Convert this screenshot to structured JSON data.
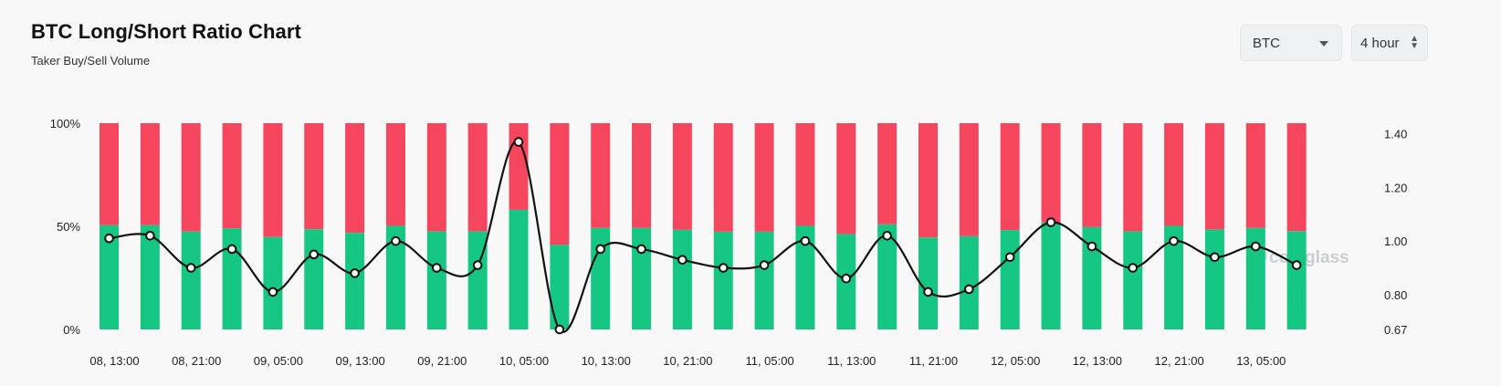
{
  "header": {
    "title": "BTC Long/Short Ratio Chart",
    "subtitle": "Taker Buy/Sell Volume"
  },
  "controls": {
    "symbol": "BTC",
    "interval": "4 hour"
  },
  "watermark": "coinglass",
  "colors": {
    "long": "#16c784",
    "short": "#f6465d",
    "line": "#111111"
  },
  "chart_data": {
    "type": "bar",
    "title": "BTC Long/Short Ratio Chart",
    "subtitle": "Taker Buy/Sell Volume",
    "x_tick_labels": [
      "08, 13:00",
      "08, 21:00",
      "09, 05:00",
      "09, 13:00",
      "09, 21:00",
      "10, 05:00",
      "10, 13:00",
      "10, 21:00",
      "11, 05:00",
      "11, 13:00",
      "11, 21:00",
      "12, 05:00",
      "12, 13:00",
      "12, 21:00",
      "13, 05:00"
    ],
    "left_axis": {
      "ticks": [
        "0%",
        "50%",
        "100%"
      ],
      "ylim": [
        0,
        100
      ]
    },
    "right_axis": {
      "ticks": [
        "0.67",
        "0.80",
        "1.00",
        "1.20",
        "1.40"
      ],
      "ylim": [
        0.67,
        1.44
      ]
    },
    "series": [
      {
        "kind": "stacked-bar-long-percent",
        "values": [
          50.5,
          50.5,
          47.5,
          49.0,
          44.8,
          48.6,
          46.8,
          50.2,
          47.6,
          47.6,
          58.0,
          41.0,
          49.2,
          49.2,
          48.3,
          47.4,
          47.4,
          50.2,
          46.2,
          51.0,
          44.6,
          45.2,
          48.2,
          51.9,
          49.6,
          47.6,
          50.2,
          48.5,
          49.2,
          47.7
        ]
      },
      {
        "kind": "line-ratio",
        "values": [
          1.01,
          1.02,
          0.9,
          0.97,
          0.81,
          0.95,
          0.88,
          1.0,
          0.9,
          0.91,
          1.37,
          0.67,
          0.97,
          0.97,
          0.93,
          0.9,
          0.91,
          1.0,
          0.86,
          1.02,
          0.81,
          0.82,
          0.94,
          1.07,
          0.98,
          0.9,
          1.0,
          0.94,
          0.98,
          0.91
        ]
      }
    ]
  }
}
